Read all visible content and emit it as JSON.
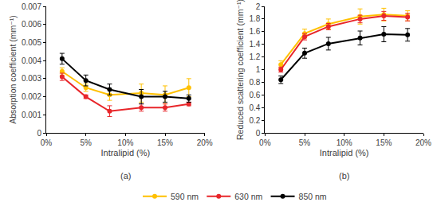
{
  "chart_data": [
    {
      "type": "line",
      "title": "(a)",
      "x_label": "Intralipid (%)",
      "y_label": "Absorption coefficient (mm⁻¹)",
      "x": [
        2,
        5,
        8,
        12,
        15,
        18
      ],
      "xlim": [
        0,
        20
      ],
      "xticks": [
        {
          "value": 0,
          "label": "0%"
        },
        {
          "value": 5,
          "label": "5%"
        },
        {
          "value": 10,
          "label": "10%"
        },
        {
          "value": 15,
          "label": "15%"
        },
        {
          "value": 20,
          "label": "20%"
        }
      ],
      "ylim": [
        0,
        0.007
      ],
      "yticks": [
        0,
        0.001,
        0.002,
        0.003,
        0.004,
        0.005,
        0.006,
        0.007
      ],
      "grid": false,
      "legend": "bottom",
      "series": [
        {
          "name": "590 nm",
          "color": "#ffc000",
          "marker": "circle",
          "values": [
            0.0034,
            0.0025,
            0.0021,
            0.0022,
            0.0021,
            0.0025
          ],
          "error": [
            0.0002,
            0.0002,
            0.0003,
            0.0005,
            0.0005,
            0.0005
          ]
        },
        {
          "name": "630 nm",
          "color": "#e8262a",
          "marker": "circle",
          "values": [
            0.0031,
            0.002,
            0.0012,
            0.0014,
            0.0014,
            0.0016
          ],
          "error": [
            0.0002,
            0.0001,
            0.0003,
            0.0002,
            0.0002,
            0.0001
          ]
        },
        {
          "name": "850 nm",
          "color": "#000000",
          "marker": "circle",
          "values": [
            0.0041,
            0.0029,
            0.0024,
            0.002,
            0.002,
            0.0019
          ],
          "error": [
            0.0003,
            0.0003,
            0.0003,
            0.0004,
            0.0003,
            0.0002
          ]
        }
      ]
    },
    {
      "type": "line",
      "title": "(b)",
      "x_label": "Intralipid (%)",
      "y_label": "Reduced scattering coefficient (mm⁻¹)",
      "x": [
        2,
        5,
        8,
        12,
        15,
        18
      ],
      "xlim": [
        0,
        20
      ],
      "xticks": [
        {
          "value": 0,
          "label": "0%"
        },
        {
          "value": 5,
          "label": "5%"
        },
        {
          "value": 10,
          "label": "10%"
        },
        {
          "value": 15,
          "label": "15%"
        },
        {
          "value": 20,
          "label": "20%"
        }
      ],
      "ylim": [
        0,
        2
      ],
      "yticks": [
        0,
        0.2,
        0.4,
        0.6,
        0.8,
        1,
        1.2,
        1.4,
        1.6,
        1.8,
        2
      ],
      "grid": false,
      "legend": "bottom",
      "series": [
        {
          "name": "590 nm",
          "color": "#ffc000",
          "marker": "circle",
          "values": [
            1.08,
            1.57,
            1.72,
            1.84,
            1.87,
            1.85
          ],
          "error": [
            0.06,
            0.07,
            0.08,
            0.12,
            0.1,
            0.08
          ]
        },
        {
          "name": "630 nm",
          "color": "#e8262a",
          "marker": "circle",
          "values": [
            1.0,
            1.52,
            1.68,
            1.8,
            1.85,
            1.83
          ],
          "error": [
            0.04,
            0.05,
            0.05,
            0.06,
            0.07,
            0.06
          ]
        },
        {
          "name": "850 nm",
          "color": "#000000",
          "marker": "circle",
          "values": [
            0.84,
            1.26,
            1.41,
            1.5,
            1.56,
            1.55
          ],
          "error": [
            0.06,
            0.08,
            0.1,
            0.11,
            0.12,
            0.1
          ]
        }
      ]
    }
  ]
}
